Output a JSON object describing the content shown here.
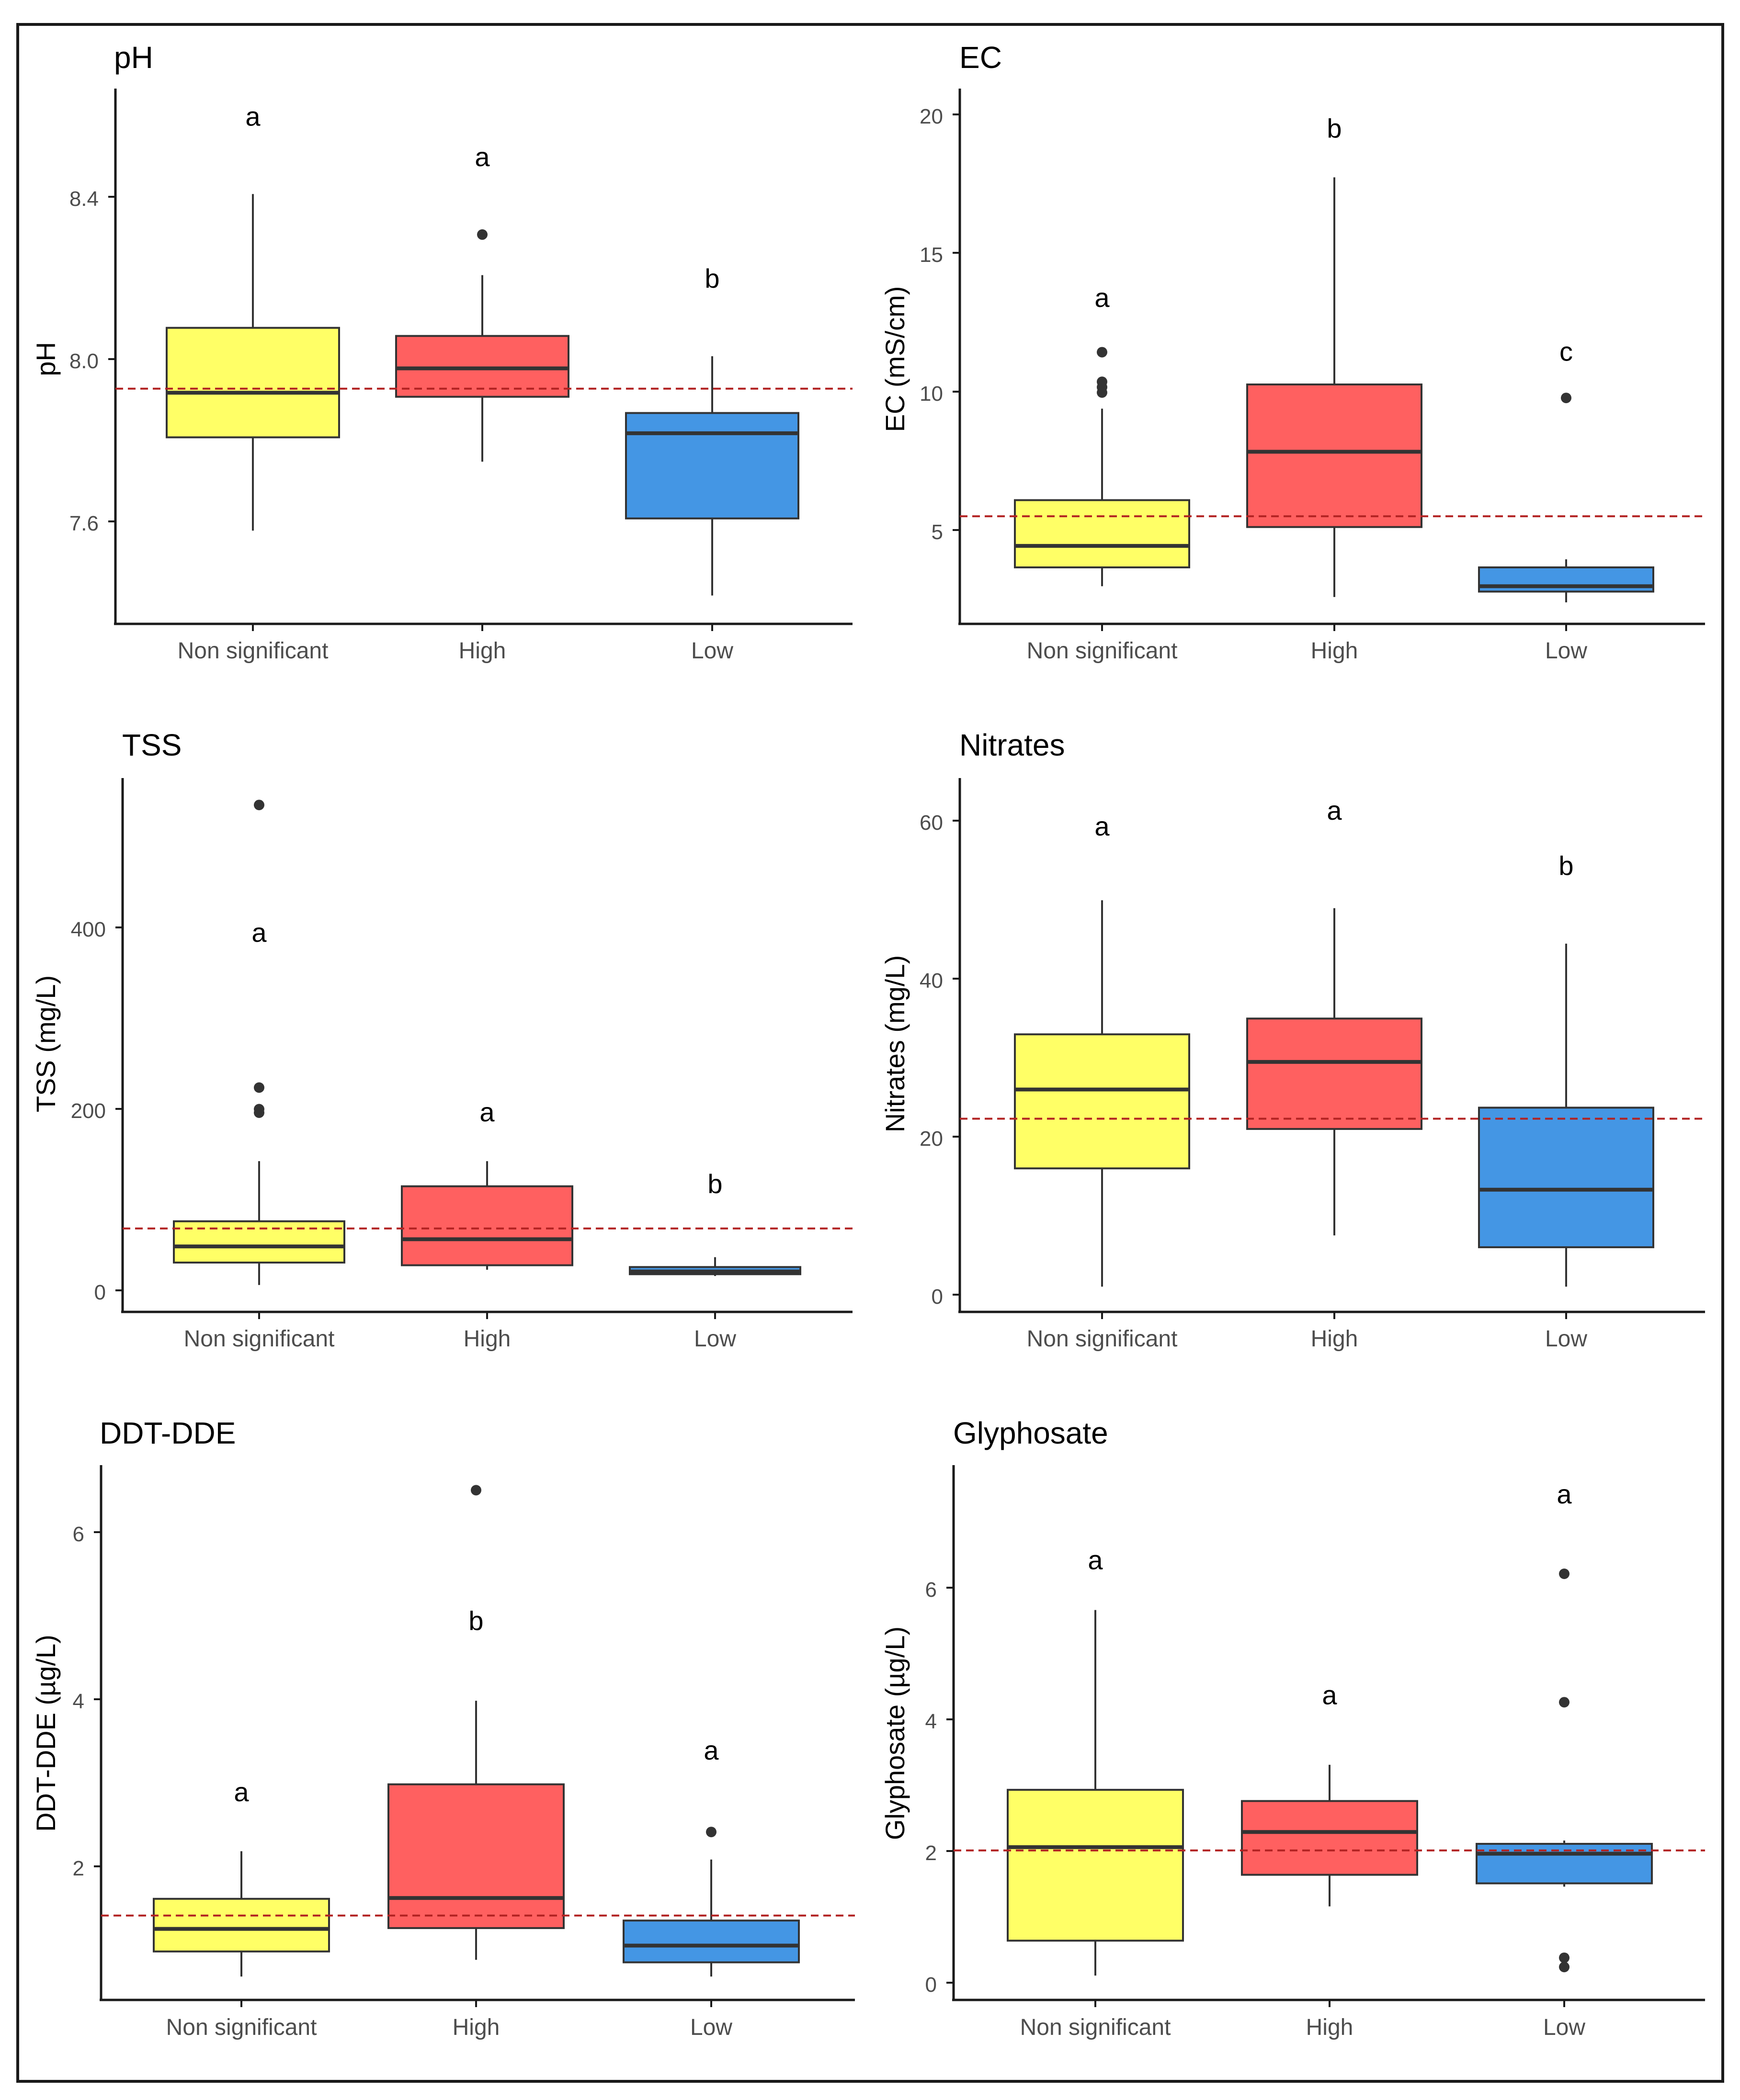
{
  "colors": {
    "non_significant": "#FFFF66",
    "high": "#FF6060",
    "low": "#4496E4",
    "mean_line": "#B22222",
    "median": "#333333",
    "axis": "#1a1a1a",
    "tick_label": "#4d4d4d"
  },
  "chart_data": [
    {
      "id": "ph",
      "type": "boxplot",
      "title": "pH",
      "xlabel": "",
      "ylabel": "pH",
      "categories": [
        "Non significant",
        "High",
        "Low"
      ],
      "ylim": [
        7.34,
        8.66
      ],
      "yticks": [
        7.6,
        8.0,
        8.4
      ],
      "ytick_labels": [
        "7.6",
        "8.0",
        "8.4"
      ],
      "reference_line": 7.92,
      "boxes": [
        {
          "min": 7.57,
          "q1": 7.8,
          "median": 7.91,
          "q3": 8.07,
          "max": 8.4,
          "outliers": [],
          "letter": "a",
          "letter_y": 8.59
        },
        {
          "min": 7.74,
          "q1": 7.9,
          "median": 7.97,
          "q3": 8.05,
          "max": 8.2,
          "outliers": [
            8.3
          ],
          "letter": "a",
          "letter_y": 8.49
        },
        {
          "min": 7.41,
          "q1": 7.6,
          "median": 7.81,
          "q3": 7.86,
          "max": 8.0,
          "outliers": [],
          "letter": "b",
          "letter_y": 8.19
        }
      ]
    },
    {
      "id": "ec",
      "type": "boxplot",
      "title": "EC",
      "xlabel": "",
      "ylabel": "EC (mS/cm)",
      "categories": [
        "Non significant",
        "High",
        "Low"
      ],
      "ylim": [
        1.6,
        21.5
      ],
      "yticks": [
        5,
        10,
        15,
        20
      ],
      "ytick_labels": [
        "5",
        "10",
        "15",
        "20"
      ],
      "reference_line": 5.6,
      "boxes": [
        {
          "min": 3.0,
          "q1": 3.7,
          "median": 4.5,
          "q3": 6.2,
          "max": 9.6,
          "outliers": [
            10.2,
            10.4,
            10.6,
            11.7
          ],
          "letter": "a",
          "letter_y": 13.7
        },
        {
          "min": 2.6,
          "q1": 5.2,
          "median": 8.0,
          "q3": 10.5,
          "max": 18.2,
          "outliers": [],
          "letter": "b",
          "letter_y": 20.0
        },
        {
          "min": 2.4,
          "q1": 2.8,
          "median": 3.0,
          "q3": 3.7,
          "max": 4.0,
          "outliers": [
            10.0
          ],
          "letter": "c",
          "letter_y": 11.7
        }
      ]
    },
    {
      "id": "tss",
      "type": "boxplot",
      "title": "TSS",
      "xlabel": "",
      "ylabel": "TSS (mg/L)",
      "categories": [
        "Non significant",
        "High",
        "Low"
      ],
      "ylim": [
        -25,
        570
      ],
      "yticks": [
        0,
        200,
        400
      ],
      "ytick_labels": [
        "0",
        "200",
        "400"
      ],
      "reference_line": 68,
      "boxes": [
        {
          "min": 5,
          "q1": 30,
          "median": 48,
          "q3": 76,
          "max": 143,
          "outliers": [
            197,
            201,
            225,
            540
          ],
          "letter": "a",
          "letter_y": 397
        },
        {
          "min": 22,
          "q1": 27,
          "median": 56,
          "q3": 115,
          "max": 143,
          "outliers": [],
          "letter": "a",
          "letter_y": 197
        },
        {
          "min": 15,
          "q1": 17,
          "median": 20,
          "q3": 25,
          "max": 36,
          "outliers": [],
          "letter": "b",
          "letter_y": 117
        }
      ]
    },
    {
      "id": "nitrates",
      "type": "boxplot",
      "title": "Nitrates",
      "xlabel": "",
      "ylabel": "Nitrates (mg/L)",
      "categories": [
        "Non significant",
        "High",
        "Low"
      ],
      "ylim": [
        -2.2,
        65.5
      ],
      "yticks": [
        0,
        20,
        40,
        60
      ],
      "ytick_labels": [
        "0",
        "20",
        "40",
        "60"
      ],
      "reference_line": 22.3,
      "boxes": [
        {
          "min": 1,
          "q1": 16,
          "median": 26,
          "q3": 33,
          "max": 50,
          "outliers": [],
          "letter": "a",
          "letter_y": 59.3
        },
        {
          "min": 7.5,
          "q1": 21,
          "median": 29.5,
          "q3": 35,
          "max": 49,
          "outliers": [],
          "letter": "a",
          "letter_y": 61.3
        },
        {
          "min": 1,
          "q1": 6,
          "median": 13.3,
          "q3": 23.7,
          "max": 44.5,
          "outliers": [],
          "letter": "b",
          "letter_y": 54.3
        }
      ]
    },
    {
      "id": "ddt",
      "type": "boxplot",
      "title": "DDT-DDE",
      "xlabel": "",
      "ylabel": "DDT-DDE (µg/L)",
      "categories": [
        "Non significant",
        "High",
        "Low"
      ],
      "ylim": [
        0.42,
        6.82
      ],
      "yticks": [
        2,
        4,
        6
      ],
      "ytick_labels": [
        "2",
        "4",
        "6"
      ],
      "reference_line": 1.43,
      "boxes": [
        {
          "min": 0.7,
          "q1": 1.0,
          "median": 1.27,
          "q3": 1.63,
          "max": 2.2,
          "outliers": [],
          "letter": "a",
          "letter_y": 2.9
        },
        {
          "min": 0.9,
          "q1": 1.28,
          "median": 1.64,
          "q3": 3.0,
          "max": 4.0,
          "outliers": [
            6.52
          ],
          "letter": "b",
          "letter_y": 4.95
        },
        {
          "min": 0.7,
          "q1": 0.87,
          "median": 1.07,
          "q3": 1.37,
          "max": 2.1,
          "outliers": [
            2.43
          ],
          "letter": "a",
          "letter_y": 3.4
        }
      ]
    },
    {
      "id": "glyphosate",
      "type": "boxplot",
      "title": "Glyphosate",
      "xlabel": "",
      "ylabel": "Glyphosate (µg/L)",
      "categories": [
        "Non significant",
        "High",
        "Low"
      ],
      "ylim": [
        -0.22,
        7.9
      ],
      "yticks": [
        0,
        2,
        4,
        6
      ],
      "ytick_labels": [
        "0",
        "2",
        "4",
        "6"
      ],
      "reference_line": 2.05,
      "boxes": [
        {
          "min": 0.15,
          "q1": 0.68,
          "median": 2.1,
          "q3": 2.97,
          "max": 5.7,
          "outliers": [],
          "letter": "a",
          "letter_y": 6.45
        },
        {
          "min": 1.2,
          "q1": 1.68,
          "median": 2.33,
          "q3": 2.8,
          "max": 3.35,
          "outliers": [],
          "letter": "a",
          "letter_y": 4.4
        },
        {
          "min": 1.5,
          "q1": 1.55,
          "median": 2.0,
          "q3": 2.15,
          "max": 2.2,
          "outliers": [
            0.28,
            0.42,
            4.3,
            6.25
          ],
          "letter": "a",
          "letter_y": 7.45
        }
      ]
    }
  ]
}
